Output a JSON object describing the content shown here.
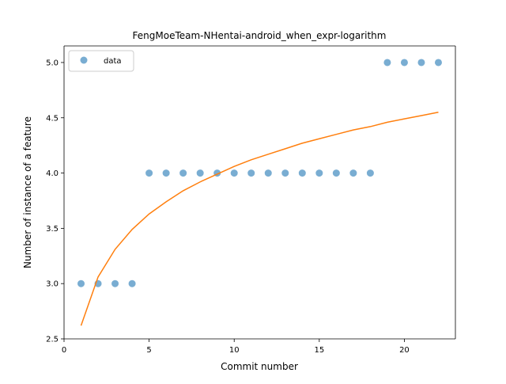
{
  "chart_data": {
    "type": "scatter",
    "title": "FengMoeTeam-NHentai-android_when_expr-logarithm",
    "xlabel": "Commit number",
    "ylabel": "Number of instance of a feature",
    "xlim": [
      0,
      23
    ],
    "ylim": [
      2.5,
      5.15
    ],
    "xticks": [
      0,
      5,
      10,
      15,
      20
    ],
    "yticks": [
      2.5,
      3.0,
      3.5,
      4.0,
      4.5,
      5.0
    ],
    "xtick_labels": [
      "0",
      "5",
      "10",
      "15",
      "20"
    ],
    "ytick_labels": [
      "2.5",
      "3.0",
      "3.5",
      "4.0",
      "4.5",
      "5.0"
    ],
    "grid": false,
    "legend_position": "upper-left",
    "series": [
      {
        "name": "data",
        "kind": "scatter",
        "color": "#1f77b4",
        "x": [
          1,
          2,
          3,
          4,
          5,
          6,
          7,
          8,
          9,
          10,
          11,
          12,
          13,
          14,
          15,
          16,
          17,
          18,
          19,
          20,
          21,
          22
        ],
        "y": [
          3,
          3,
          3,
          3,
          4,
          4,
          4,
          4,
          4,
          4,
          4,
          4,
          4,
          4,
          4,
          4,
          4,
          4,
          5,
          5,
          5,
          5
        ]
      },
      {
        "kind": "line",
        "color": "#ff7f0e",
        "x": [
          1,
          2,
          3,
          4,
          5,
          6,
          7,
          8,
          9,
          10,
          11,
          12,
          13,
          14,
          15,
          16,
          17,
          18,
          19,
          20,
          21,
          22
        ],
        "y": [
          2.62,
          3.06,
          3.31,
          3.49,
          3.63,
          3.74,
          3.84,
          3.92,
          3.99,
          4.06,
          4.12,
          4.17,
          4.22,
          4.27,
          4.31,
          4.35,
          4.39,
          4.42,
          4.46,
          4.49,
          4.52,
          4.55
        ]
      }
    ]
  }
}
